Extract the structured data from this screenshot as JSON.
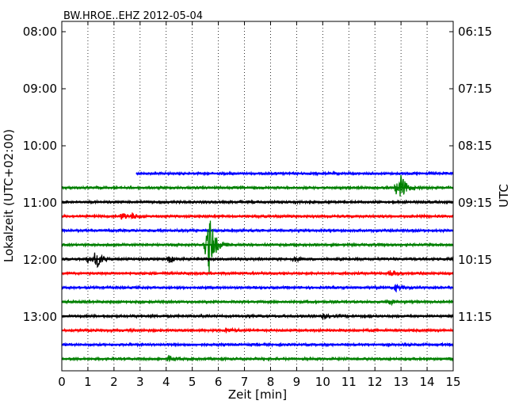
{
  "chart_data": {
    "type": "line",
    "title": "BW.HROE..EHZ 2012-05-04",
    "xlabel": "Zeit  [min]",
    "ylabel_left": "Lokalzeit (UTC+02:00)",
    "ylabel_right": "UTC",
    "xlim": [
      0,
      15
    ],
    "x_ticks": [
      "0",
      "1",
      "2",
      "3",
      "4",
      "5",
      "6",
      "7",
      "8",
      "9",
      "10",
      "11",
      "12",
      "13",
      "14",
      "15"
    ],
    "left_tick_labels": [
      "08:00",
      "09:00",
      "10:00",
      "11:00",
      "12:00",
      "13:00"
    ],
    "right_tick_labels": [
      "06:15",
      "07:15",
      "08:15",
      "09:15",
      "10:15",
      "11:15"
    ],
    "grid": "vertical-dotted",
    "colors": [
      "#0000ff",
      "#008000",
      "#000000",
      "#ff0000"
    ],
    "traces": [
      {
        "start_min": 2.85,
        "color": "#0000ff",
        "events": []
      },
      {
        "start_min": 0,
        "color": "#008000",
        "events": [
          {
            "t": 13.0,
            "amp": 13
          },
          {
            "t": 12.8,
            "amp": 8
          }
        ]
      },
      {
        "start_min": 0,
        "color": "#000000",
        "events": []
      },
      {
        "start_min": 0,
        "color": "#ff0000",
        "events": [
          {
            "t": 2.3,
            "amp": 4
          },
          {
            "t": 2.7,
            "amp": 3
          }
        ]
      },
      {
        "start_min": 0,
        "color": "#0000ff",
        "events": []
      },
      {
        "start_min": 0,
        "color": "#008000",
        "events": [
          {
            "t": 5.65,
            "amp": 34
          },
          {
            "t": 5.5,
            "amp": 14
          }
        ]
      },
      {
        "start_min": 0,
        "color": "#000000",
        "events": [
          {
            "t": 1.3,
            "amp": 12
          },
          {
            "t": 1.0,
            "amp": 5
          },
          {
            "t": 4.1,
            "amp": 4
          },
          {
            "t": 8.9,
            "amp": 3
          }
        ]
      },
      {
        "start_min": 0,
        "color": "#ff0000",
        "events": [
          {
            "t": 12.6,
            "amp": 4
          }
        ]
      },
      {
        "start_min": 0,
        "color": "#0000ff",
        "events": [
          {
            "t": 12.8,
            "amp": 4
          }
        ]
      },
      {
        "start_min": 0,
        "color": "#008000",
        "events": [
          {
            "t": 12.5,
            "amp": 4
          }
        ]
      },
      {
        "start_min": 0,
        "color": "#000000",
        "events": [
          {
            "t": 10.0,
            "amp": 3
          }
        ]
      },
      {
        "start_min": 0,
        "color": "#ff0000",
        "events": [
          {
            "t": 6.3,
            "amp": 3
          }
        ]
      },
      {
        "start_min": 0,
        "color": "#0000ff",
        "events": []
      },
      {
        "start_min": 0,
        "color": "#008000",
        "events": [
          {
            "t": 4.1,
            "amp": 3
          }
        ]
      }
    ]
  }
}
